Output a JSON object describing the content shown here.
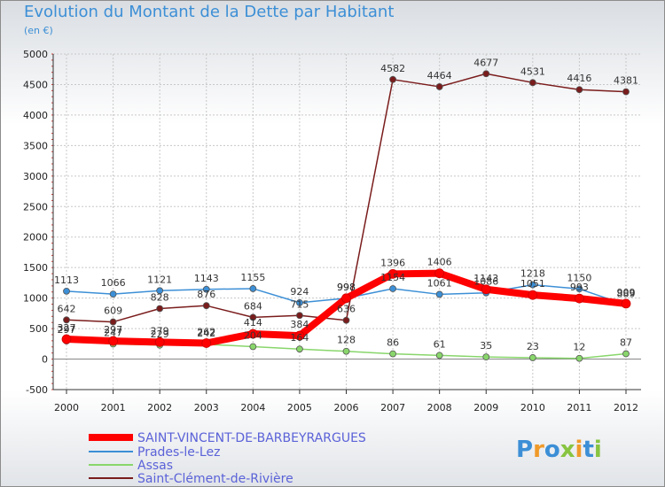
{
  "title": "Evolution du Montant de la Dette par Habitant",
  "subtitle": "(en €)",
  "logo": "Proxiti",
  "chart_data": {
    "type": "line",
    "title": "Evolution du Montant de la Dette par Habitant",
    "subtitle": "(en €)",
    "xlabel": "",
    "ylabel": "",
    "x": [
      "2000",
      "2001",
      "2002",
      "2003",
      "2004",
      "2005",
      "2006",
      "2007",
      "2008",
      "2009",
      "2010",
      "2011",
      "2012"
    ],
    "ylim": [
      -500,
      5000
    ],
    "yticks": [
      -500,
      0,
      500,
      1000,
      1500,
      2000,
      2500,
      3000,
      3500,
      4000,
      4500,
      5000
    ],
    "grid": true,
    "legend": "bottom-left",
    "series": [
      {
        "name": "SAINT-VINCENT-DE-BARBEYRARGUES",
        "color": "#ff0000",
        "values": [
          327,
          297,
          279,
          262,
          414,
          384,
          998,
          1396,
          1406,
          1143,
          1051,
          993,
          909
        ]
      },
      {
        "name": "Prades-le-Lez",
        "color": "#3c8fd6",
        "values": [
          1113,
          1066,
          1121,
          1143,
          1155,
          924,
          998,
          1154,
          1061,
          1086,
          1218,
          1150,
          889
        ]
      },
      {
        "name": "Assas",
        "color": "#88d66b",
        "values": [
          297,
          247,
          229,
          242,
          204,
          164,
          128,
          86,
          61,
          35,
          23,
          12,
          87
        ]
      },
      {
        "name": "Saint-Clément-de-Rivière",
        "color": "#7a1c1c",
        "values": [
          642,
          609,
          828,
          876,
          684,
          715,
          636,
          4582,
          4464,
          4677,
          4531,
          4416,
          4381
        ]
      }
    ]
  }
}
